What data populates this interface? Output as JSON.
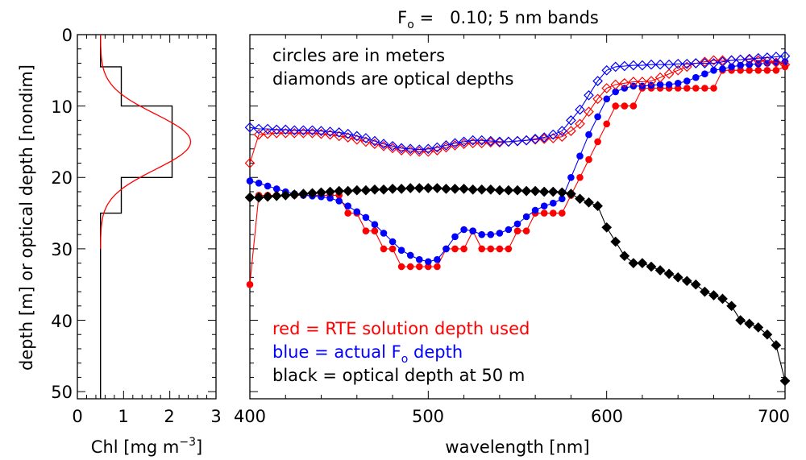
{
  "chart_data": [
    {
      "type": "line",
      "xlabel_prefix": "Chl [mg m",
      "xlabel_sup": "−3",
      "xlabel_suffix": "]",
      "ylabel": "depth [m] or optical depth [nondim]",
      "xlim": [
        0,
        3
      ],
      "ylim": [
        0,
        51
      ],
      "x_ticks": [
        "0",
        "1",
        "2",
        "3"
      ],
      "y_ticks": [
        "0",
        "10",
        "20",
        "30",
        "40",
        "50"
      ],
      "series": [
        {
          "kind": "step",
          "color": "#000000",
          "x": [
            0.5,
            0.5,
            0.95,
            0.95,
            2.05,
            2.05,
            0.95,
            0.95,
            0.5,
            0.5
          ],
          "y": [
            0,
            4.5,
            4.5,
            10,
            10,
            20,
            20,
            25,
            25,
            51
          ]
        },
        {
          "kind": "gaussian",
          "color": "#ff0000",
          "background": 0.5,
          "peak": 2.45,
          "center": 15,
          "sigma": 3.9,
          "depth_range": [
            0,
            30
          ]
        }
      ]
    },
    {
      "type": "scatter",
      "title_prefix": "F",
      "title_sub": "o",
      "title_suffix": " =   0.10; 5 nm bands",
      "xlabel": "wavelength [nm]",
      "xlim": [
        400,
        700
      ],
      "ylim": [
        0,
        51
      ],
      "x_ticks": [
        "400",
        "500",
        "600",
        "700"
      ],
      "annotations": [
        "circles are in meters",
        "diamonds are optical depths"
      ],
      "legend": {
        "red": "red = RTE solution depth used",
        "blue_prefix": "blue = actual F",
        "blue_sub": "o",
        "blue_suffix": " depth",
        "black": "black = optical depth at 50 m"
      },
      "x": [
        400,
        405,
        410,
        415,
        420,
        425,
        430,
        435,
        440,
        445,
        450,
        455,
        460,
        465,
        470,
        475,
        480,
        485,
        490,
        495,
        500,
        505,
        510,
        515,
        520,
        525,
        530,
        535,
        540,
        545,
        550,
        555,
        560,
        565,
        570,
        575,
        580,
        585,
        590,
        595,
        600,
        605,
        610,
        615,
        620,
        625,
        630,
        635,
        640,
        645,
        650,
        655,
        660,
        665,
        670,
        675,
        680,
        685,
        690,
        695,
        700
      ],
      "series": [
        {
          "name": "red circles",
          "color": "#ff0000",
          "marker": "circle",
          "values": [
            35,
            22.5,
            22.5,
            22.5,
            22.5,
            22.5,
            22.5,
            22.5,
            22.5,
            22.5,
            22.5,
            25,
            25,
            27.5,
            27.5,
            30,
            30,
            32.5,
            32.5,
            32.5,
            32.5,
            32.5,
            30,
            30,
            30,
            27.5,
            30,
            30,
            30,
            30,
            27.5,
            27.5,
            25,
            25,
            25,
            25,
            22.5,
            20,
            17.5,
            15,
            12.5,
            10,
            10,
            10,
            7.5,
            7.5,
            7.5,
            7.5,
            7.5,
            7.5,
            7.5,
            7.5,
            7.5,
            5,
            5,
            5,
            5,
            5,
            5,
            5,
            4.5
          ]
        },
        {
          "name": "blue circles",
          "color": "#0000ff",
          "marker": "circle",
          "values": [
            20.5,
            20.8,
            21.2,
            21.6,
            22,
            22.3,
            22.5,
            22.6,
            22.7,
            22.9,
            23.3,
            24,
            24.8,
            25.6,
            26.6,
            27.8,
            29,
            30.2,
            30.9,
            31.5,
            31.8,
            31.5,
            30,
            28.3,
            27.3,
            27.5,
            28,
            28,
            27.8,
            27.3,
            26.5,
            25.5,
            24.6,
            24,
            23.6,
            23,
            20,
            17,
            14,
            11.5,
            9,
            8,
            7.5,
            7.2,
            7.2,
            7.1,
            7,
            7,
            6.8,
            6.5,
            6,
            5.5,
            5,
            4.8,
            4.5,
            4.3,
            4.2,
            4.1,
            4,
            3.9,
            3.8
          ]
        },
        {
          "name": "red diamonds",
          "color": "#ff0000",
          "marker": "diamond-open",
          "values": [
            18,
            14,
            13.9,
            13.8,
            13.8,
            13.8,
            13.8,
            13.8,
            13.9,
            14,
            14.2,
            14.4,
            14.7,
            15,
            15.3,
            15.6,
            15.9,
            16.2,
            16.3,
            16.4,
            16.4,
            16.2,
            15.8,
            15.5,
            15.3,
            15.2,
            15.2,
            15.1,
            15.1,
            15,
            14.9,
            14.8,
            14.7,
            14.6,
            14.5,
            14.3,
            13.5,
            12.5,
            10.8,
            9,
            7.5,
            7,
            6.8,
            6.6,
            6.6,
            6.5,
            6,
            5.5,
            5,
            4.5,
            4,
            3.8,
            3.6,
            3.6,
            3.6,
            3.5,
            3.5,
            3.6,
            3.7,
            3.9,
            4.2
          ]
        },
        {
          "name": "blue diamonds",
          "color": "#0000ff",
          "marker": "diamond-open",
          "values": [
            13,
            13.2,
            13.2,
            13.3,
            13.3,
            13.4,
            13.4,
            13.4,
            13.5,
            13.6,
            13.7,
            13.9,
            14.2,
            14.5,
            14.9,
            15.3,
            15.6,
            15.9,
            16,
            16.1,
            16,
            15.8,
            15.5,
            15.2,
            15,
            14.8,
            14.8,
            14.9,
            15,
            15,
            14.9,
            14.8,
            14.6,
            14.4,
            14,
            13.5,
            12,
            10.5,
            8.5,
            6.5,
            5,
            4.5,
            4.4,
            4.3,
            4.3,
            4.2,
            4.2,
            4.2,
            4.1,
            4.1,
            4,
            4,
            4,
            3.8,
            3.6,
            3.5,
            3.4,
            3.3,
            3.2,
            3.1,
            3
          ]
        },
        {
          "name": "black diamonds",
          "color": "#000000",
          "marker": "diamond-filled",
          "values": [
            22.8,
            22.8,
            22.7,
            22.6,
            22.5,
            22.4,
            22.3,
            22.2,
            22.1,
            22,
            21.9,
            21.9,
            21.8,
            21.8,
            21.7,
            21.7,
            21.6,
            21.6,
            21.5,
            21.5,
            21.5,
            21.5,
            21.6,
            21.6,
            21.6,
            21.7,
            21.7,
            21.7,
            21.8,
            21.8,
            21.8,
            21.9,
            21.9,
            22,
            22,
            22.1,
            22.3,
            23,
            23.5,
            24,
            27,
            29,
            31,
            32,
            32,
            32.5,
            33,
            33.5,
            34,
            34.5,
            35,
            36,
            36.5,
            37,
            38,
            40,
            40.5,
            41,
            42,
            43.5,
            48.5
          ]
        }
      ]
    }
  ]
}
